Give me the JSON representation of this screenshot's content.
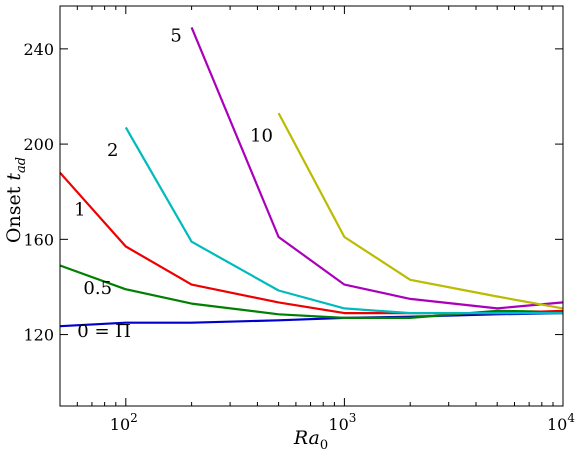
{
  "chart_data": {
    "type": "line",
    "title": "",
    "xlabel": "Ra_0",
    "ylabel": "Onset t_ad",
    "xscale": "log",
    "xlim": [
      50,
      10000
    ],
    "ylim": [
      90,
      258
    ],
    "grid": false,
    "x_ticks": [
      {
        "value": 100,
        "base": "10",
        "exp": "2"
      },
      {
        "value": 1000,
        "base": "10",
        "exp": "3"
      },
      {
        "value": 10000,
        "base": "10",
        "exp": "4"
      }
    ],
    "y_ticks": [
      120,
      160,
      200,
      240
    ],
    "series": [
      {
        "name": "0 = Π",
        "color": "#0000cc",
        "points": [
          [
            50,
            123.5
          ],
          [
            100,
            125
          ],
          [
            200,
            125
          ],
          [
            500,
            126
          ],
          [
            1000,
            127
          ],
          [
            2000,
            127.5
          ],
          [
            5000,
            128.5
          ],
          [
            10000,
            129
          ]
        ],
        "label_at": [
          60,
          119
        ]
      },
      {
        "name": "0.5",
        "color": "#008000",
        "points": [
          [
            50,
            149
          ],
          [
            100,
            139
          ],
          [
            200,
            133
          ],
          [
            500,
            128.5
          ],
          [
            1000,
            127
          ],
          [
            2000,
            127
          ],
          [
            5000,
            130
          ],
          [
            10000,
            129.5
          ]
        ],
        "label_at": [
          64,
          137
        ]
      },
      {
        "name": "1",
        "color": "#ee0000",
        "points": [
          [
            50,
            188
          ],
          [
            100,
            157
          ],
          [
            200,
            141
          ],
          [
            500,
            133.5
          ],
          [
            1000,
            129
          ],
          [
            2000,
            129
          ],
          [
            5000,
            129
          ],
          [
            10000,
            130
          ]
        ],
        "label_at": [
          58,
          170
        ]
      },
      {
        "name": "2",
        "color": "#00bbbb",
        "points": [
          [
            100,
            207
          ],
          [
            200,
            159
          ],
          [
            500,
            138.5
          ],
          [
            1000,
            131
          ],
          [
            2000,
            129
          ],
          [
            5000,
            129
          ],
          [
            10000,
            129
          ]
        ],
        "label_at": [
          82,
          195
        ]
      },
      {
        "name": "5",
        "color": "#aa00bb",
        "points": [
          [
            200,
            249
          ],
          [
            500,
            161
          ],
          [
            1000,
            141
          ],
          [
            2000,
            135
          ],
          [
            5000,
            131
          ],
          [
            10000,
            133.5
          ]
        ],
        "label_at": [
          160,
          243
        ]
      },
      {
        "name": "10",
        "color": "#bbbb00",
        "points": [
          [
            500,
            213
          ],
          [
            1000,
            161
          ],
          [
            2000,
            143
          ],
          [
            5000,
            136
          ],
          [
            10000,
            131
          ]
        ],
        "label_at": [
          370,
          201
        ]
      }
    ]
  }
}
